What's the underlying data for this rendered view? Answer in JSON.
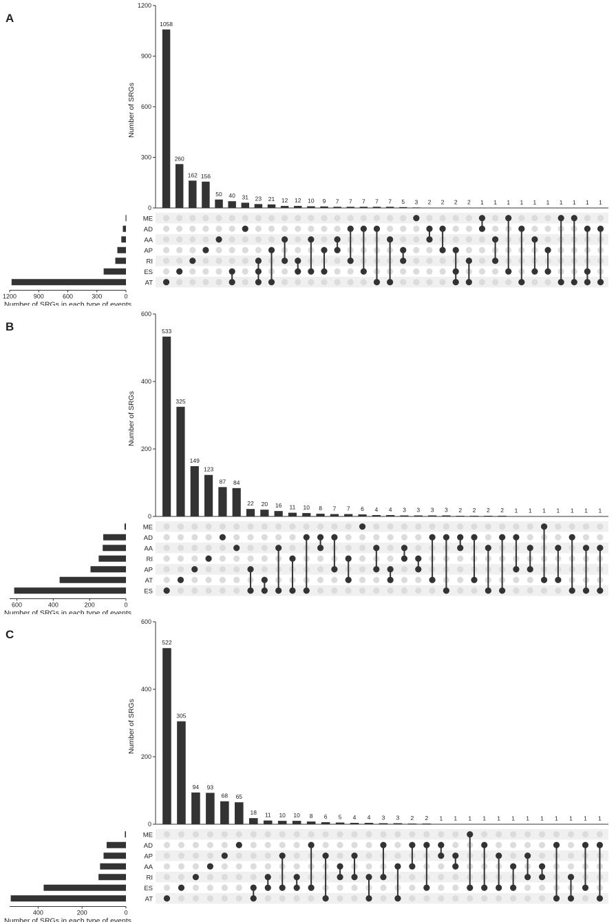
{
  "chart_data": [
    {
      "type": "upset",
      "panel_label": "A",
      "ylabel": "Number of SRGs",
      "set_size_label": "Number of SRGs in each type of events",
      "yticks": [
        0,
        300,
        600,
        900,
        1200
      ],
      "ylim": [
        0,
        1200
      ],
      "set_size_ticks": [
        1200,
        900,
        600,
        300,
        0
      ],
      "set_size_max": 1200,
      "sets": [
        "ME",
        "AD",
        "AA",
        "AP",
        "RI",
        "ES",
        "AT"
      ],
      "set_sizes": [
        4,
        32,
        48,
        89,
        110,
        230,
        1180
      ],
      "intersections": [
        {
          "value": 1058,
          "sets": [
            "AT"
          ]
        },
        {
          "value": 260,
          "sets": [
            "ES"
          ]
        },
        {
          "value": 162,
          "sets": [
            "RI"
          ]
        },
        {
          "value": 156,
          "sets": [
            "AP"
          ]
        },
        {
          "value": 50,
          "sets": [
            "AA"
          ]
        },
        {
          "value": 40,
          "sets": [
            "ES",
            "AT"
          ]
        },
        {
          "value": 31,
          "sets": [
            "AD"
          ]
        },
        {
          "value": 23,
          "sets": [
            "RI",
            "ES",
            "AT"
          ]
        },
        {
          "value": 21,
          "sets": [
            "AP",
            "AT"
          ]
        },
        {
          "value": 12,
          "sets": [
            "AA",
            "RI"
          ]
        },
        {
          "value": 12,
          "sets": [
            "RI",
            "ES"
          ]
        },
        {
          "value": 10,
          "sets": [
            "AA",
            "ES"
          ]
        },
        {
          "value": 9,
          "sets": [
            "AP",
            "ES"
          ]
        },
        {
          "value": 7,
          "sets": [
            "AA",
            "AP"
          ]
        },
        {
          "value": 7,
          "sets": [
            "AD",
            "RI"
          ]
        },
        {
          "value": 7,
          "sets": [
            "AD",
            "ES"
          ]
        },
        {
          "value": 7,
          "sets": [
            "AD",
            "AT"
          ]
        },
        {
          "value": 7,
          "sets": [
            "AA",
            "AT"
          ]
        },
        {
          "value": 5,
          "sets": [
            "AP",
            "RI"
          ]
        },
        {
          "value": 3,
          "sets": [
            "ME"
          ]
        },
        {
          "value": 2,
          "sets": [
            "AD",
            "AA"
          ]
        },
        {
          "value": 2,
          "sets": [
            "AD",
            "AP"
          ]
        },
        {
          "value": 2,
          "sets": [
            "AP",
            "ES",
            "AT"
          ]
        },
        {
          "value": 2,
          "sets": [
            "RI",
            "AT"
          ]
        },
        {
          "value": 1,
          "sets": [
            "ME",
            "AD"
          ]
        },
        {
          "value": 1,
          "sets": [
            "AA",
            "RI"
          ]
        },
        {
          "value": 1,
          "sets": [
            "ME",
            "ES"
          ]
        },
        {
          "value": 1,
          "sets": [
            "AD",
            "AT"
          ]
        },
        {
          "value": 1,
          "sets": [
            "AA",
            "ES"
          ]
        },
        {
          "value": 1,
          "sets": [
            "AP",
            "ES"
          ]
        },
        {
          "value": 1,
          "sets": [
            "ME",
            "AT"
          ]
        },
        {
          "value": 1,
          "sets": [
            "ME",
            "AT"
          ]
        },
        {
          "value": 1,
          "sets": [
            "AD",
            "ES",
            "AT"
          ]
        },
        {
          "value": 1,
          "sets": [
            "AD",
            "AT"
          ]
        }
      ]
    },
    {
      "type": "upset",
      "panel_label": "B",
      "ylabel": "Number of SRGs",
      "set_size_label": "Number of SRGs in each type of events",
      "yticks": [
        0,
        200,
        400,
        600
      ],
      "ylim": [
        0,
        600
      ],
      "set_size_ticks": [
        600,
        400,
        200,
        0
      ],
      "set_size_max": 640,
      "sets": [
        "ME",
        "AD",
        "AA",
        "RI",
        "AP",
        "AT",
        "ES"
      ],
      "set_sizes": [
        8,
        125,
        128,
        150,
        195,
        365,
        615
      ],
      "intersections": [
        {
          "value": 533,
          "sets": [
            "ES"
          ]
        },
        {
          "value": 325,
          "sets": [
            "AT"
          ]
        },
        {
          "value": 149,
          "sets": [
            "AP"
          ]
        },
        {
          "value": 123,
          "sets": [
            "RI"
          ]
        },
        {
          "value": 87,
          "sets": [
            "AD"
          ]
        },
        {
          "value": 84,
          "sets": [
            "AA"
          ]
        },
        {
          "value": 22,
          "sets": [
            "AP",
            "ES"
          ]
        },
        {
          "value": 20,
          "sets": [
            "AT",
            "ES"
          ]
        },
        {
          "value": 16,
          "sets": [
            "AA",
            "ES"
          ]
        },
        {
          "value": 11,
          "sets": [
            "RI",
            "ES"
          ]
        },
        {
          "value": 10,
          "sets": [
            "AD",
            "ES"
          ]
        },
        {
          "value": 8,
          "sets": [
            "AD",
            "AA"
          ]
        },
        {
          "value": 7,
          "sets": [
            "AD",
            "AP"
          ]
        },
        {
          "value": 7,
          "sets": [
            "RI",
            "AT"
          ]
        },
        {
          "value": 6,
          "sets": [
            "ME"
          ]
        },
        {
          "value": 4,
          "sets": [
            "AA",
            "AP"
          ]
        },
        {
          "value": 4,
          "sets": [
            "AP",
            "AT"
          ]
        },
        {
          "value": 3,
          "sets": [
            "AA",
            "RI"
          ]
        },
        {
          "value": 3,
          "sets": [
            "RI",
            "AP"
          ]
        },
        {
          "value": 3,
          "sets": [
            "AD",
            "AT"
          ]
        },
        {
          "value": 3,
          "sets": [
            "AD",
            "ES"
          ]
        },
        {
          "value": 2,
          "sets": [
            "AD",
            "AA"
          ]
        },
        {
          "value": 2,
          "sets": [
            "AD",
            "AT"
          ]
        },
        {
          "value": 2,
          "sets": [
            "AA",
            "ES"
          ]
        },
        {
          "value": 2,
          "sets": [
            "AD",
            "ES"
          ]
        },
        {
          "value": 1,
          "sets": [
            "AD",
            "AP"
          ]
        },
        {
          "value": 1,
          "sets": [
            "AA",
            "AP"
          ]
        },
        {
          "value": 1,
          "sets": [
            "ME",
            "AT"
          ]
        },
        {
          "value": 1,
          "sets": [
            "AA",
            "AT"
          ]
        },
        {
          "value": 1,
          "sets": [
            "AD",
            "ES"
          ]
        },
        {
          "value": 1,
          "sets": [
            "AA",
            "ES"
          ]
        },
        {
          "value": 1,
          "sets": [
            "AA",
            "ES"
          ]
        }
      ]
    },
    {
      "type": "upset",
      "panel_label": "C",
      "ylabel": "Number of SRGs",
      "set_size_label": "Number of SRGs in each type of events",
      "yticks": [
        0,
        200,
        400,
        600
      ],
      "ylim": [
        0,
        600
      ],
      "set_size_ticks": [
        400,
        200,
        0
      ],
      "set_size_max": 530,
      "sets": [
        "ME",
        "AD",
        "AP",
        "AA",
        "RI",
        "ES",
        "AT"
      ],
      "set_sizes": [
        5,
        88,
        102,
        118,
        125,
        375,
        525
      ],
      "intersections": [
        {
          "value": 522,
          "sets": [
            "AT"
          ]
        },
        {
          "value": 305,
          "sets": [
            "ES"
          ]
        },
        {
          "value": 94,
          "sets": [
            "RI"
          ]
        },
        {
          "value": 93,
          "sets": [
            "AA"
          ]
        },
        {
          "value": 68,
          "sets": [
            "AP"
          ]
        },
        {
          "value": 65,
          "sets": [
            "AD"
          ]
        },
        {
          "value": 18,
          "sets": [
            "ES",
            "AT"
          ]
        },
        {
          "value": 11,
          "sets": [
            "RI",
            "ES"
          ]
        },
        {
          "value": 10,
          "sets": [
            "AP",
            "ES"
          ]
        },
        {
          "value": 10,
          "sets": [
            "RI",
            "ES"
          ]
        },
        {
          "value": 8,
          "sets": [
            "AD",
            "ES"
          ]
        },
        {
          "value": 6,
          "sets": [
            "AP",
            "AT"
          ]
        },
        {
          "value": 5,
          "sets": [
            "AA",
            "RI"
          ]
        },
        {
          "value": 4,
          "sets": [
            "AP",
            "RI"
          ]
        },
        {
          "value": 4,
          "sets": [
            "RI",
            "AT"
          ]
        },
        {
          "value": 3,
          "sets": [
            "AD",
            "RI"
          ]
        },
        {
          "value": 3,
          "sets": [
            "AA",
            "AT"
          ]
        },
        {
          "value": 2,
          "sets": [
            "AD",
            "AA"
          ]
        },
        {
          "value": 2,
          "sets": [
            "AD",
            "ES"
          ]
        },
        {
          "value": 1,
          "sets": [
            "AD",
            "AP"
          ]
        },
        {
          "value": 1,
          "sets": [
            "AP",
            "AA"
          ]
        },
        {
          "value": 1,
          "sets": [
            "ME",
            "ES"
          ]
        },
        {
          "value": 1,
          "sets": [
            "AD",
            "ES"
          ]
        },
        {
          "value": 1,
          "sets": [
            "AP",
            "ES"
          ]
        },
        {
          "value": 1,
          "sets": [
            "AA",
            "ES"
          ]
        },
        {
          "value": 1,
          "sets": [
            "AP",
            "RI"
          ]
        },
        {
          "value": 1,
          "sets": [
            "AA",
            "RI"
          ]
        },
        {
          "value": 1,
          "sets": [
            "AD",
            "AT"
          ]
        },
        {
          "value": 1,
          "sets": [
            "RI",
            "AT"
          ]
        },
        {
          "value": 1,
          "sets": [
            "AD",
            "ES"
          ]
        },
        {
          "value": 1,
          "sets": [
            "AD",
            "AT"
          ]
        }
      ]
    }
  ]
}
